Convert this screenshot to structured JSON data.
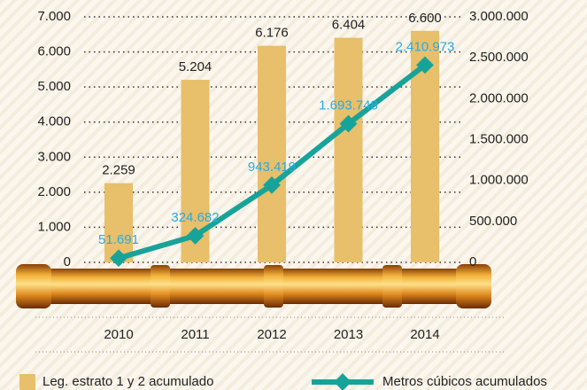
{
  "chart_data": {
    "type": "bar",
    "categories": [
      "2010",
      "2011",
      "2012",
      "2013",
      "2014"
    ],
    "series": [
      {
        "name": "Leg. estrato 1 y 2 acumulado",
        "type": "bar",
        "color": "#e8bf6a",
        "values": [
          2259,
          5204,
          6176,
          6404,
          6600
        ],
        "value_labels": [
          "2.259",
          "5.204",
          "6.176",
          "6.404",
          "6.600"
        ]
      },
      {
        "name": "Metros cúbicos acumulados",
        "type": "line",
        "axis": "y2",
        "color": "#17a39a",
        "label_color": "#29abe2",
        "values": [
          51691,
          324682,
          943419,
          1693748,
          2410973
        ],
        "value_labels": [
          "51.691",
          "324.682",
          "943.419",
          "1.693.748",
          "2.410.973"
        ]
      }
    ],
    "ylim": [
      0,
      7000
    ],
    "yticks": [
      0,
      {
        "value": 1000,
        "label": "1.000"
      },
      {
        "value": 2000,
        "label": "2.000"
      },
      {
        "value": 3000,
        "label": "3.000"
      },
      {
        "value": 4000,
        "label": "4.000"
      },
      {
        "value": 5000,
        "label": "5.000"
      },
      {
        "value": 6000,
        "label": "6.000"
      },
      {
        "value": 7000,
        "label": "7.000"
      }
    ],
    "y2lim": [
      0,
      3000000
    ],
    "y2ticks": [
      0,
      {
        "value": 500000,
        "label": "500.000"
      },
      {
        "value": 1000000,
        "label": "1.000.000"
      },
      {
        "value": 1500000,
        "label": "1.500.000"
      },
      {
        "value": 2000000,
        "label": "2.000.000"
      },
      {
        "value": 2500000,
        "label": "2.500.000"
      },
      {
        "value": 3000000,
        "label": "3.000.000"
      }
    ],
    "grid": true
  }
}
